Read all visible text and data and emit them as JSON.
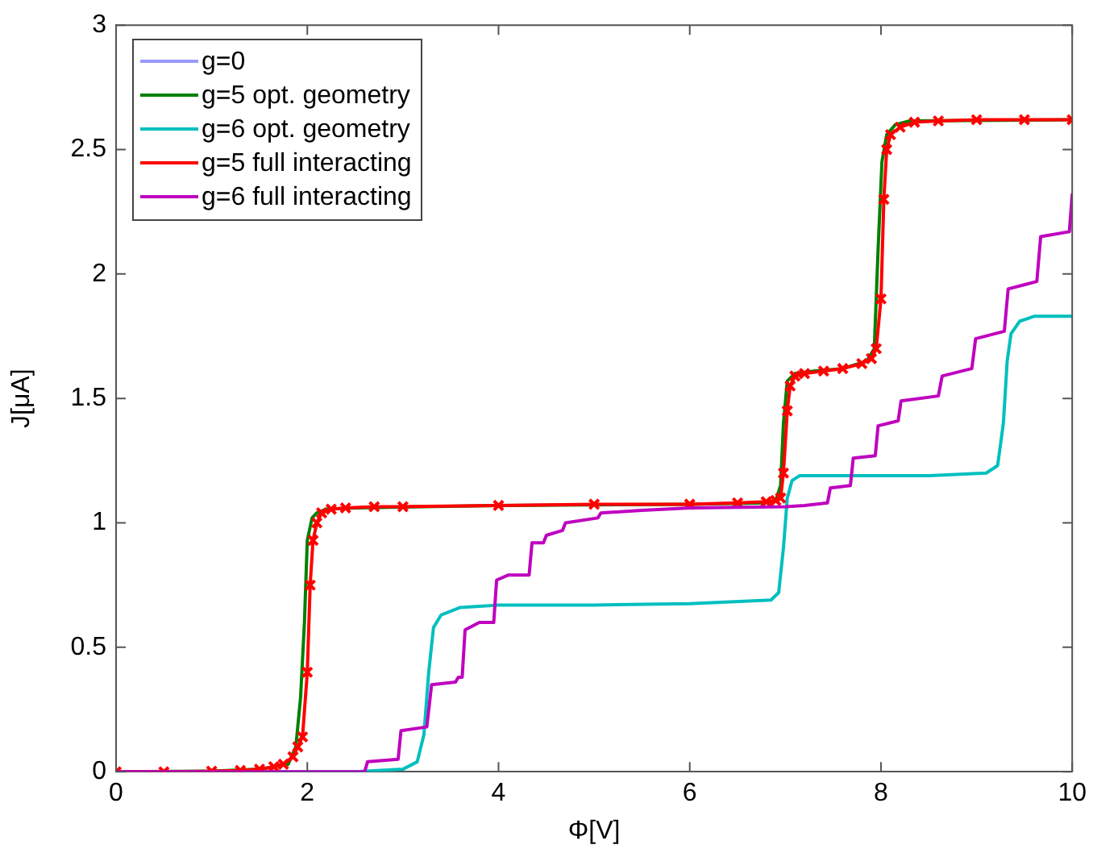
{
  "chart_data": {
    "type": "line",
    "xlabel": "Φ[V]",
    "ylabel": "J[μA]",
    "xlim": [
      0,
      10
    ],
    "xticks": [
      0,
      2,
      4,
      6,
      8,
      10
    ],
    "ylim": [
      0,
      3
    ],
    "yticks": [
      0,
      0.5,
      1,
      1.5,
      2,
      2.5,
      3
    ],
    "grid": false,
    "legend": "top left",
    "line_style": "solid",
    "series": [
      {
        "name": "g=0",
        "color": "#9999ff"
      },
      {
        "name": "g=5 opt. geometry",
        "color": "#008000",
        "x": [
          0,
          1,
          1.5,
          1.8,
          1.88,
          1.93,
          1.97,
          2.0,
          2.05,
          2.1,
          2.2,
          2.5,
          4,
          6,
          6.8,
          6.9,
          6.95,
          6.98,
          7.02,
          7.1,
          7.3,
          7.6,
          7.85,
          7.93,
          7.97,
          8.01,
          8.06,
          8.15,
          8.3,
          10
        ],
        "values": [
          0,
          0.002,
          0.01,
          0.03,
          0.1,
          0.3,
          0.6,
          0.93,
          1.02,
          1.04,
          1.055,
          1.06,
          1.07,
          1.075,
          1.08,
          1.09,
          1.15,
          1.4,
          1.57,
          1.6,
          1.61,
          1.62,
          1.65,
          1.7,
          2.1,
          2.45,
          2.56,
          2.6,
          2.615,
          2.62
        ]
      },
      {
        "name": "g=6 opt. geometry",
        "color": "#00bfbf",
        "x": [
          0,
          2.5,
          3.0,
          3.15,
          3.22,
          3.27,
          3.32,
          3.4,
          3.6,
          4,
          5,
          6,
          6.85,
          6.93,
          6.98,
          7.02,
          7.07,
          7.15,
          7.5,
          8.5,
          9.1,
          9.22,
          9.28,
          9.32,
          9.36,
          9.45,
          9.6,
          10
        ],
        "values": [
          0,
          0,
          0.01,
          0.04,
          0.15,
          0.4,
          0.58,
          0.63,
          0.66,
          0.67,
          0.67,
          0.675,
          0.69,
          0.72,
          0.9,
          1.1,
          1.17,
          1.19,
          1.19,
          1.19,
          1.2,
          1.23,
          1.4,
          1.65,
          1.76,
          1.81,
          1.83,
          1.83
        ]
      },
      {
        "name": "g=5 full interacting",
        "color": "#ff0000",
        "marker": "cross",
        "x": [
          0,
          0.5,
          1,
          1.3,
          1.5,
          1.65,
          1.75,
          1.85,
          1.9,
          1.95,
          2.0,
          2.03,
          2.06,
          2.1,
          2.15,
          2.25,
          2.4,
          2.7,
          3,
          4,
          5,
          6,
          6.5,
          6.8,
          6.9,
          6.95,
          6.98,
          7.02,
          7.05,
          7.1,
          7.2,
          7.4,
          7.6,
          7.8,
          7.9,
          7.95,
          8.0,
          8.03,
          8.06,
          8.1,
          8.2,
          8.35,
          8.6,
          9,
          9.5,
          10
        ],
        "values": [
          0,
          0,
          0.002,
          0.005,
          0.01,
          0.02,
          0.03,
          0.06,
          0.1,
          0.14,
          0.4,
          0.75,
          0.93,
          1.0,
          1.04,
          1.055,
          1.06,
          1.065,
          1.065,
          1.07,
          1.075,
          1.075,
          1.08,
          1.085,
          1.09,
          1.1,
          1.2,
          1.45,
          1.55,
          1.59,
          1.6,
          1.61,
          1.62,
          1.64,
          1.66,
          1.7,
          1.9,
          2.3,
          2.5,
          2.56,
          2.59,
          2.61,
          2.615,
          2.62,
          2.62,
          2.62
        ]
      },
      {
        "name": "g=6 full interacting",
        "color": "#bf00bf",
        "x": [
          0,
          2.6,
          2.63,
          2.95,
          2.98,
          3.25,
          3.3,
          3.55,
          3.58,
          3.62,
          3.65,
          3.8,
          3.95,
          3.98,
          4.1,
          4.32,
          4.35,
          4.47,
          4.5,
          4.67,
          4.7,
          5.04,
          5.07,
          5.5,
          6,
          7,
          7.2,
          7.44,
          7.47,
          7.68,
          7.71,
          7.94,
          7.97,
          8.18,
          8.21,
          8.6,
          8.64,
          8.95,
          8.99,
          9.29,
          9.33,
          9.63,
          9.67,
          9.97,
          10
        ],
        "values": [
          0,
          0,
          0.04,
          0.05,
          0.165,
          0.18,
          0.35,
          0.36,
          0.38,
          0.38,
          0.57,
          0.6,
          0.6,
          0.77,
          0.79,
          0.79,
          0.92,
          0.92,
          0.95,
          0.97,
          1.0,
          1.02,
          1.04,
          1.05,
          1.06,
          1.065,
          1.07,
          1.08,
          1.14,
          1.15,
          1.26,
          1.27,
          1.39,
          1.41,
          1.49,
          1.51,
          1.59,
          1.62,
          1.74,
          1.77,
          1.94,
          1.97,
          2.15,
          2.17,
          2.32
        ]
      }
    ]
  }
}
